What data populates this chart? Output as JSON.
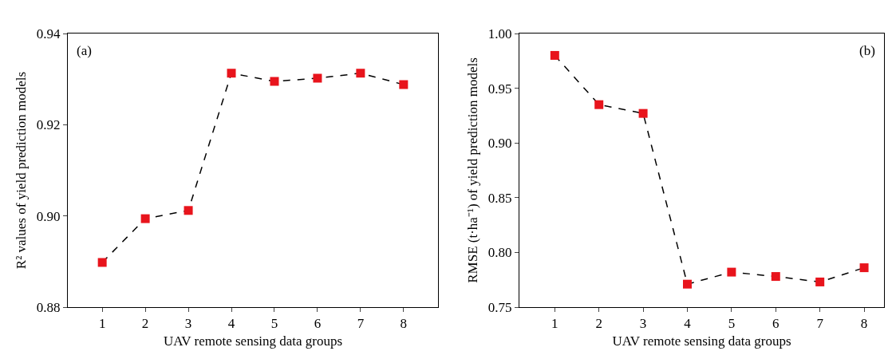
{
  "chart_data": [
    {
      "type": "line",
      "x": [
        1,
        2,
        3,
        4,
        5,
        6,
        7,
        8
      ],
      "series": [
        {
          "color": "#e8141c",
          "values": [
            0.8898,
            0.8994,
            0.9012,
            0.9313,
            0.9295,
            0.9302,
            0.9313,
            0.9288
          ]
        }
      ],
      "xlabel": "UAV remote sensing data groups",
      "ylabel": "R² values of yield prediction models",
      "annotations": [
        "(a)"
      ],
      "xlim": [
        0.2,
        8.8
      ],
      "xticks": [
        1,
        2,
        3,
        4,
        5,
        6,
        7,
        8
      ],
      "ylim": [
        0.88,
        0.94
      ],
      "yticks": [
        0.88,
        {
          "value": 0.9,
          "label": "0.90"
        },
        0.92,
        0.94
      ],
      "grid": false,
      "marker": "square",
      "line_style": "dashed"
    },
    {
      "type": "line",
      "x": [
        1,
        2,
        3,
        4,
        5,
        6,
        7,
        8
      ],
      "series": [
        {
          "color": "#e8141c",
          "values": [
            0.98,
            0.935,
            0.927,
            0.771,
            0.782,
            0.778,
            0.773,
            0.786
          ]
        }
      ],
      "xlabel": "UAV remote sensing data groups",
      "ylabel": "RMSE (t·ha⁻¹) of yield prediction models",
      "annotations": [
        "(b)"
      ],
      "xlim": [
        0.2,
        8.45
      ],
      "xticks": [
        1,
        2,
        3,
        4,
        5,
        6,
        7,
        8
      ],
      "ylim": [
        0.75,
        1.0
      ],
      "yticks": [
        0.75,
        {
          "value": 0.8,
          "label": "0.80"
        },
        0.85,
        {
          "value": 0.9,
          "label": "0.90"
        },
        0.95,
        {
          "value": 1.0,
          "label": "1.00"
        }
      ],
      "grid": false,
      "marker": "square",
      "line_style": "dashed"
    }
  ]
}
